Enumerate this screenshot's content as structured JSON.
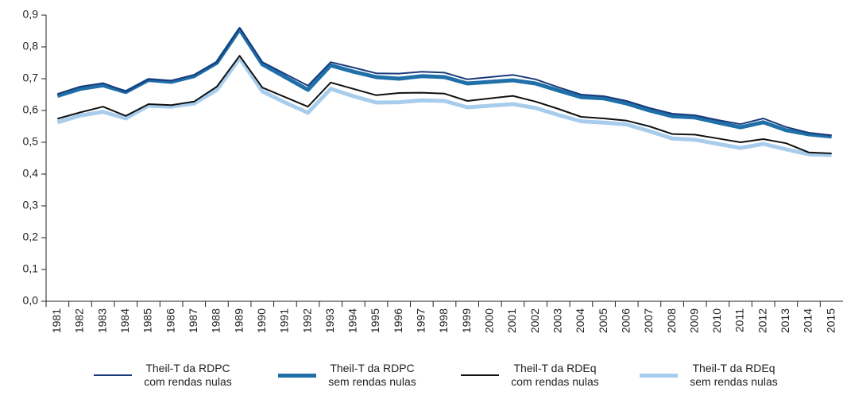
{
  "chart_data": {
    "type": "line",
    "categories": [
      "1981",
      "1982",
      "1983",
      "1984",
      "1985",
      "1986",
      "1987",
      "1988",
      "1989",
      "1990",
      "1991",
      "1992",
      "1993",
      "1994",
      "1995",
      "1996",
      "1997",
      "1998",
      "1999",
      "2000",
      "2001",
      "2002",
      "2003",
      "2004",
      "2005",
      "2006",
      "2007",
      "2008",
      "2009",
      "2010",
      "2011",
      "2012",
      "2013",
      "2014",
      "2015"
    ],
    "series": [
      {
        "name": "Theil-T da RDPC sem rendas nulas",
        "color": "#1f6fa8",
        "width": 5,
        "values": [
          0.646,
          0.668,
          0.679,
          0.658,
          0.696,
          0.69,
          0.708,
          0.75,
          0.855,
          0.745,
          0.705,
          0.665,
          0.742,
          0.722,
          0.705,
          0.7,
          0.708,
          0.705,
          0.685,
          0.69,
          0.695,
          0.685,
          0.663,
          0.642,
          0.638,
          0.622,
          0.6,
          0.582,
          0.578,
          0.562,
          0.547,
          0.563,
          0.538,
          0.525,
          0.518
        ]
      },
      {
        "name": "Theil-T da RDPC com rendas nulas",
        "color": "#1a3a7a",
        "width": 2,
        "values": [
          0.652,
          0.675,
          0.686,
          0.66,
          0.698,
          0.694,
          0.712,
          0.752,
          0.86,
          0.752,
          0.715,
          0.678,
          0.752,
          0.735,
          0.717,
          0.716,
          0.722,
          0.719,
          0.698,
          0.705,
          0.712,
          0.698,
          0.673,
          0.65,
          0.645,
          0.63,
          0.608,
          0.59,
          0.585,
          0.57,
          0.557,
          0.575,
          0.548,
          0.53,
          0.522
        ]
      },
      {
        "name": "Theil-T da RDEq sem rendas nulas",
        "color": "#a8cdec",
        "width": 5,
        "values": [
          0.563,
          0.584,
          0.596,
          0.575,
          0.615,
          0.612,
          0.622,
          0.665,
          0.765,
          0.66,
          0.625,
          0.593,
          0.668,
          0.645,
          0.625,
          0.626,
          0.632,
          0.63,
          0.61,
          0.615,
          0.62,
          0.608,
          0.586,
          0.566,
          0.562,
          0.556,
          0.535,
          0.512,
          0.508,
          0.495,
          0.482,
          0.495,
          0.478,
          0.462,
          0.46
        ]
      },
      {
        "name": "Theil-T da RDEq com rendas nulas",
        "color": "#111111",
        "width": 2,
        "values": [
          0.574,
          0.594,
          0.612,
          0.583,
          0.62,
          0.617,
          0.628,
          0.675,
          0.772,
          0.672,
          0.642,
          0.612,
          0.688,
          0.668,
          0.648,
          0.655,
          0.656,
          0.653,
          0.63,
          0.638,
          0.646,
          0.628,
          0.605,
          0.58,
          0.575,
          0.568,
          0.55,
          0.526,
          0.524,
          0.512,
          0.5,
          0.51,
          0.497,
          0.468,
          0.465
        ]
      }
    ],
    "legend_order": [
      1,
      0,
      3,
      2
    ],
    "ylim": [
      0,
      0.9
    ],
    "yticks": [
      {
        "value": 0,
        "label": "0,0"
      },
      {
        "value": 0.1,
        "label": "0,1"
      },
      {
        "value": 0.2,
        "label": "0,2"
      },
      {
        "value": 0.3,
        "label": "0,3"
      },
      {
        "value": 0.4,
        "label": "0,4"
      },
      {
        "value": 0.5,
        "label": "0,5"
      },
      {
        "value": 0.6,
        "label": "0,6"
      },
      {
        "value": 0.7,
        "label": "0,7"
      },
      {
        "value": 0.8,
        "label": "0,8"
      },
      {
        "value": 0.9,
        "label": "0,9"
      }
    ],
    "grid": false
  }
}
